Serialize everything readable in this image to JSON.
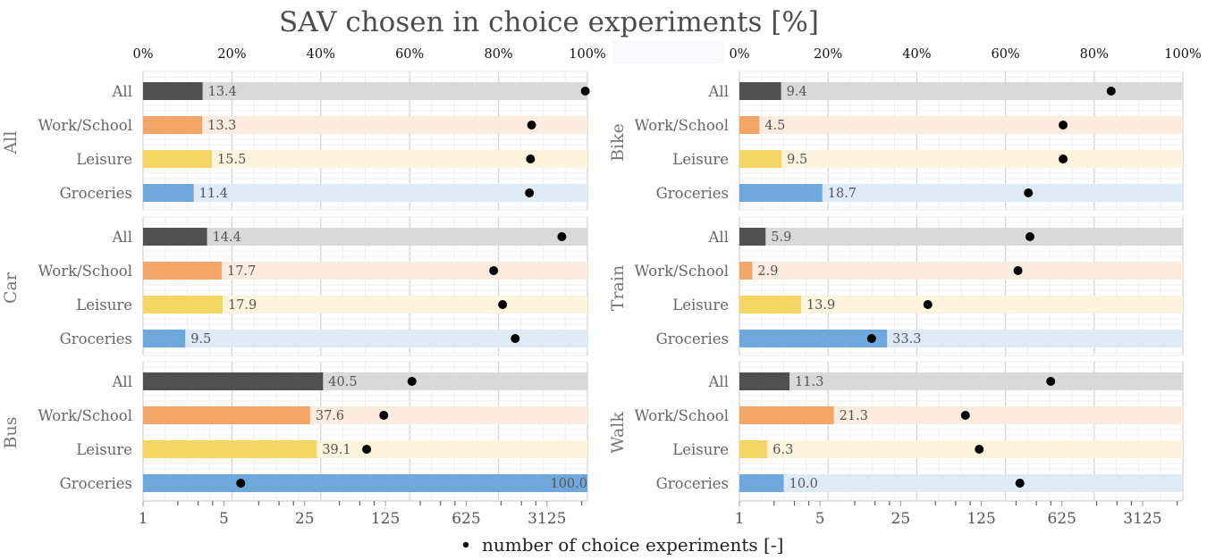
{
  "chart_data": {
    "type": "bar",
    "title": "SAV chosen in choice experiments [%]",
    "top_axis": {
      "label": "SAV chosen in choice experiments [%]",
      "range": [
        0,
        100
      ],
      "ticks": [
        "0%",
        "20%",
        "40%",
        "60%",
        "80%",
        "100%"
      ]
    },
    "bottom_axis": {
      "label": "number of choice experiments [-]",
      "scale": "log5",
      "range": [
        1,
        6988
      ],
      "ticks": [
        "1",
        "5",
        "25",
        "125",
        "625",
        "3125"
      ]
    },
    "legend": {
      "entries": [
        {
          "marker": "dot",
          "label": "number of choice experiments [-]"
        }
      ],
      "placement": "bottom-center"
    },
    "grid": true,
    "categories": [
      "All",
      "Work/School",
      "Leisure",
      "Groceries"
    ],
    "category_colors": {
      "All": {
        "bar": "#505050",
        "background": "#d9d9d9"
      },
      "Work/School": {
        "bar": "#f4a666",
        "background": "#fcebdf"
      },
      "Leisure": {
        "bar": "#f5d563",
        "background": "#fcf4dd"
      },
      "Groceries": {
        "bar": "#6fa8dc",
        "background": "#deebf7"
      }
    },
    "facets": [
      {
        "name": "All",
        "column": "left",
        "percent": [
          13.4,
          13.3,
          15.5,
          11.4
        ],
        "labels": [
          "13.4",
          "13.3",
          "15.5",
          "11.4"
        ],
        "experiments": [
          6700,
          2300,
          2250,
          2200
        ]
      },
      {
        "name": "Car",
        "column": "left",
        "percent": [
          14.4,
          17.7,
          17.9,
          9.5
        ],
        "labels": [
          "14.4",
          "17.7",
          "17.9",
          "9.5"
        ],
        "experiments": [
          4200,
          1080,
          1290,
          1660
        ]
      },
      {
        "name": "Bus",
        "column": "left",
        "percent": [
          40.5,
          37.6,
          39.1,
          100.0
        ],
        "labels": [
          "40.5",
          "37.6",
          "39.1",
          "100.0"
        ],
        "experiments": [
          212,
          121,
          86,
          7
        ]
      },
      {
        "name": "Bike",
        "column": "right",
        "percent": [
          9.4,
          4.5,
          9.5,
          18.7
        ],
        "labels": [
          "9.4",
          "4.5",
          "9.5",
          "18.7"
        ],
        "experiments": [
          1670,
          640,
          640,
          320
        ]
      },
      {
        "name": "Train",
        "column": "right",
        "percent": [
          5.9,
          2.9,
          13.9,
          33.3
        ],
        "labels": [
          "5.9",
          "2.9",
          "13.9",
          "33.3"
        ],
        "experiments": [
          330,
          260,
          43,
          14
        ]
      },
      {
        "name": "Walk",
        "column": "right",
        "percent": [
          11.3,
          21.3,
          6.3,
          10.0
        ],
        "labels": [
          "11.3",
          "21.3",
          "6.3",
          "10.0"
        ],
        "experiments": [
          500,
          91,
          120,
          270
        ]
      }
    ]
  }
}
